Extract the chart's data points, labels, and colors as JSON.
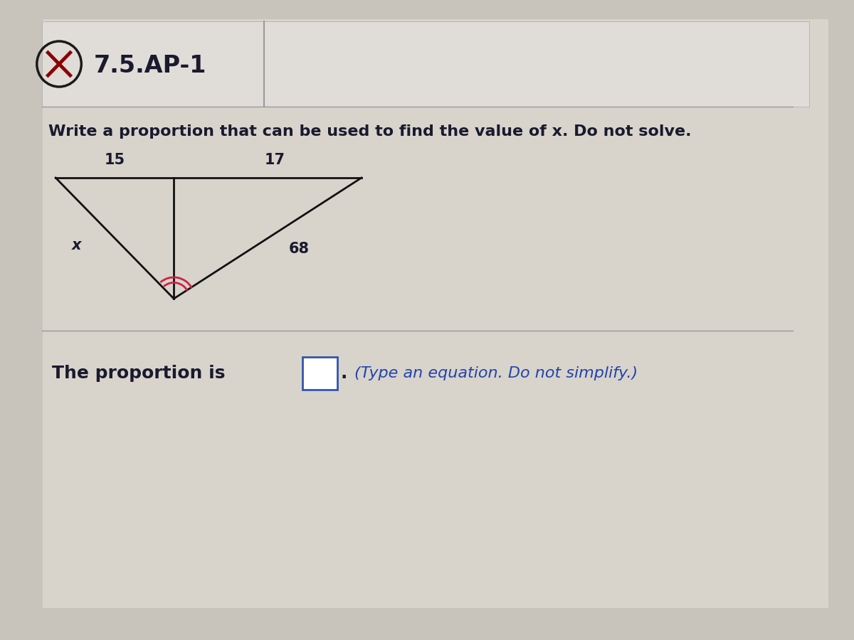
{
  "title": "7.5.AP-1",
  "problem_text": "Write a proportion that can be used to find the value of x. Do not solve.",
  "answer_text": "The proportion is",
  "answer_hint": "(Type an equation. Do not simplify.)",
  "label_15": "15",
  "label_17": "17",
  "label_68": "68",
  "label_x": "x",
  "bg_color": "#c8c4bc",
  "panel_color": "#d8d4cc",
  "header_bg": "#e0ddd8",
  "text_color": "#1a1a2e",
  "blue_text": "#2244aa",
  "line_color": "#111111",
  "icon_circle_color": "#1a1a1a",
  "icon_x_color": "#8b0000",
  "arc_color": "#cc2244",
  "box_color": "#3355aa"
}
